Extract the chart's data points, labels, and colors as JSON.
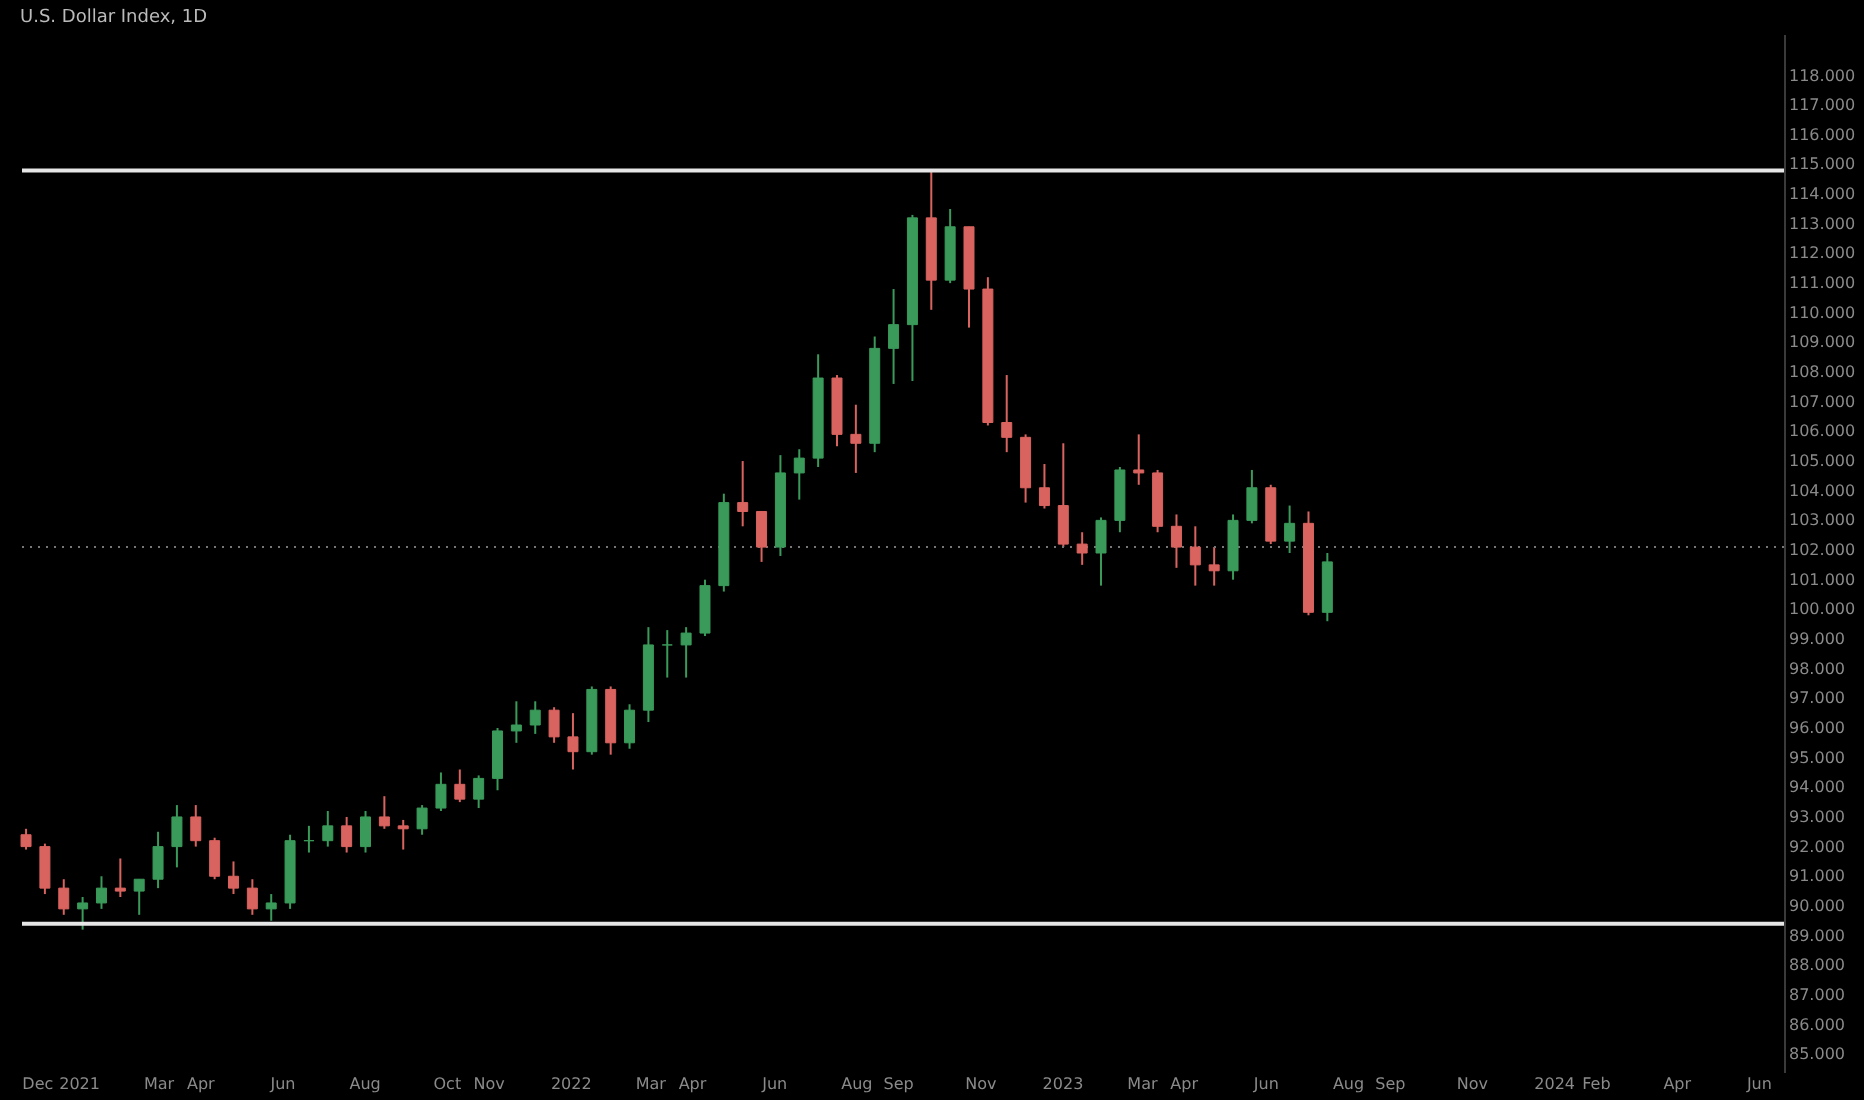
{
  "chart_data": {
    "type": "candlestick",
    "title": "U.S. Dollar Index, 1D",
    "x": [
      "2020-11-23",
      "2020-12-07",
      "2020-12-21",
      "2021-01-04",
      "2021-01-18",
      "2021-02-01",
      "2021-02-15",
      "2021-03-01",
      "2021-03-15",
      "2021-03-29",
      "2021-04-12",
      "2021-04-26",
      "2021-05-10",
      "2021-05-24",
      "2021-06-07",
      "2021-06-21",
      "2021-07-05",
      "2021-07-19",
      "2021-08-02",
      "2021-08-16",
      "2021-08-30",
      "2021-09-13",
      "2021-09-27",
      "2021-10-11",
      "2021-10-25",
      "2021-11-08",
      "2021-11-22",
      "2021-12-06",
      "2021-12-20",
      "2022-01-03",
      "2022-01-17",
      "2022-01-31",
      "2022-02-14",
      "2022-02-28",
      "2022-03-14",
      "2022-03-28",
      "2022-04-11",
      "2022-04-25",
      "2022-05-09",
      "2022-05-23",
      "2022-06-06",
      "2022-06-20",
      "2022-07-04",
      "2022-07-18",
      "2022-08-01",
      "2022-08-15",
      "2022-08-29",
      "2022-09-12",
      "2022-09-26",
      "2022-10-10",
      "2022-10-24",
      "2022-11-07",
      "2022-11-21",
      "2022-12-05",
      "2022-12-19",
      "2023-01-02",
      "2023-01-16",
      "2023-01-30",
      "2023-02-13",
      "2023-02-27",
      "2023-03-13",
      "2023-03-27",
      "2023-04-10",
      "2023-04-24",
      "2023-05-08",
      "2023-05-22",
      "2023-06-05",
      "2023-06-19",
      "2023-07-03",
      "2023-07-17"
    ],
    "ohlc": [
      [
        92.4,
        92.6,
        91.9,
        92.0
      ],
      [
        92.0,
        92.1,
        90.4,
        90.6
      ],
      [
        90.6,
        90.9,
        89.7,
        89.9
      ],
      [
        89.9,
        90.3,
        89.2,
        90.1
      ],
      [
        90.1,
        91.0,
        89.9,
        90.6
      ],
      [
        90.6,
        91.6,
        90.3,
        90.5
      ],
      [
        90.5,
        90.9,
        89.7,
        90.9
      ],
      [
        90.9,
        92.5,
        90.6,
        92.0
      ],
      [
        92.0,
        93.4,
        91.3,
        93.0
      ],
      [
        93.0,
        93.4,
        92.0,
        92.2
      ],
      [
        92.2,
        92.3,
        90.9,
        91.0
      ],
      [
        91.0,
        91.5,
        90.4,
        90.6
      ],
      [
        90.6,
        90.9,
        89.7,
        89.9
      ],
      [
        89.9,
        90.4,
        89.5,
        90.1
      ],
      [
        90.1,
        92.4,
        89.9,
        92.2
      ],
      [
        92.2,
        92.7,
        91.8,
        92.2
      ],
      [
        92.2,
        93.2,
        92.0,
        92.7
      ],
      [
        92.7,
        93.0,
        91.8,
        92.0
      ],
      [
        92.0,
        93.2,
        91.8,
        93.0
      ],
      [
        93.0,
        93.7,
        92.6,
        92.7
      ],
      [
        92.7,
        92.9,
        91.9,
        92.6
      ],
      [
        92.6,
        93.4,
        92.4,
        93.3
      ],
      [
        93.3,
        94.5,
        93.2,
        94.1
      ],
      [
        94.1,
        94.6,
        93.5,
        93.6
      ],
      [
        93.6,
        94.4,
        93.3,
        94.3
      ],
      [
        94.3,
        96.0,
        93.9,
        95.9
      ],
      [
        95.9,
        96.9,
        95.5,
        96.1
      ],
      [
        96.1,
        96.9,
        95.8,
        96.6
      ],
      [
        96.6,
        96.7,
        95.5,
        95.7
      ],
      [
        95.7,
        96.5,
        94.6,
        95.2
      ],
      [
        95.2,
        97.4,
        95.1,
        97.3
      ],
      [
        97.3,
        97.4,
        95.1,
        95.5
      ],
      [
        95.5,
        96.8,
        95.3,
        96.6
      ],
      [
        96.6,
        99.4,
        96.2,
        98.8
      ],
      [
        98.8,
        99.3,
        97.7,
        98.8
      ],
      [
        98.8,
        99.4,
        97.7,
        99.2
      ],
      [
        99.2,
        101.0,
        99.1,
        100.8
      ],
      [
        100.8,
        103.9,
        100.6,
        103.6
      ],
      [
        103.6,
        105.0,
        102.8,
        103.3
      ],
      [
        103.3,
        103.3,
        101.6,
        102.1
      ],
      [
        102.1,
        105.2,
        101.8,
        104.6
      ],
      [
        104.6,
        105.4,
        103.7,
        105.1
      ],
      [
        105.1,
        108.6,
        104.8,
        107.8
      ],
      [
        107.8,
        107.9,
        105.5,
        105.9
      ],
      [
        105.9,
        106.9,
        104.6,
        105.6
      ],
      [
        105.6,
        109.2,
        105.3,
        108.8
      ],
      [
        108.8,
        110.8,
        107.6,
        109.6
      ],
      [
        109.6,
        113.3,
        107.7,
        113.2
      ],
      [
        113.2,
        114.8,
        110.1,
        111.1
      ],
      [
        111.1,
        113.5,
        111.0,
        112.9
      ],
      [
        112.9,
        112.9,
        109.5,
        110.8
      ],
      [
        110.8,
        111.2,
        106.2,
        106.3
      ],
      [
        106.3,
        107.9,
        105.3,
        105.8
      ],
      [
        105.8,
        105.9,
        103.6,
        104.1
      ],
      [
        104.1,
        104.9,
        103.4,
        103.5
      ],
      [
        103.5,
        105.6,
        102.1,
        102.2
      ],
      [
        102.2,
        102.6,
        101.5,
        101.9
      ],
      [
        101.9,
        103.1,
        100.8,
        103.0
      ],
      [
        103.0,
        104.8,
        102.6,
        104.7
      ],
      [
        104.7,
        105.9,
        104.2,
        104.6
      ],
      [
        104.6,
        104.7,
        102.6,
        102.8
      ],
      [
        102.8,
        103.2,
        101.4,
        102.1
      ],
      [
        102.1,
        102.8,
        100.8,
        101.5
      ],
      [
        101.5,
        102.1,
        100.8,
        101.3
      ],
      [
        101.3,
        103.2,
        101.0,
        103.0
      ],
      [
        103.0,
        104.7,
        102.9,
        104.1
      ],
      [
        104.1,
        104.2,
        102.2,
        102.3
      ],
      [
        102.3,
        103.5,
        101.9,
        102.9
      ],
      [
        102.9,
        103.3,
        99.8,
        99.9
      ],
      [
        99.9,
        101.9,
        99.6,
        101.6
      ]
    ],
    "colors": [
      "#d9635f",
      "#d9635f",
      "#d9635f",
      "#3a9a5a",
      "#3a9a5a",
      "#d9635f",
      "#3a9a5a",
      "#3a9a5a",
      "#3a9a5a",
      "#d9635f",
      "#d9635f",
      "#d9635f",
      "#d9635f",
      "#3a9a5a",
      "#3a9a5a",
      "#3a9a5a",
      "#3a9a5a",
      "#d9635f",
      "#3a9a5a",
      "#d9635f",
      "#d9635f",
      "#3a9a5a",
      "#3a9a5a",
      "#d9635f",
      "#3a9a5a",
      "#3a9a5a",
      "#3a9a5a",
      "#3a9a5a",
      "#d9635f",
      "#d9635f",
      "#3a9a5a",
      "#d9635f",
      "#3a9a5a",
      "#3a9a5a",
      "#3a9a5a",
      "#3a9a5a",
      "#3a9a5a",
      "#3a9a5a",
      "#d9635f",
      "#d9635f",
      "#3a9a5a",
      "#3a9a5a",
      "#3a9a5a",
      "#d9635f",
      "#d9635f",
      "#3a9a5a",
      "#3a9a5a",
      "#3a9a5a",
      "#d9635f",
      "#3a9a5a",
      "#d9635f",
      "#d9635f",
      "#d9635f",
      "#d9635f",
      "#d9635f",
      "#d9635f",
      "#d9635f",
      "#3a9a5a",
      "#3a9a5a",
      "#d9635f",
      "#d9635f",
      "#d9635f",
      "#d9635f",
      "#d9635f",
      "#3a9a5a",
      "#3a9a5a",
      "#d9635f",
      "#3a9a5a",
      "#d9635f",
      "#3a9a5a"
    ],
    "xlim": [
      "2020-11-20",
      "2024-06-20"
    ],
    "xticks": [
      {
        "value": "2020-12-01",
        "label": "Dec"
      },
      {
        "value": "2021-01-01",
        "label": "2021"
      },
      {
        "value": "2021-03-01",
        "label": "Mar"
      },
      {
        "value": "2021-04-01",
        "label": "Apr"
      },
      {
        "value": "2021-06-01",
        "label": "Jun"
      },
      {
        "value": "2021-08-01",
        "label": "Aug"
      },
      {
        "value": "2021-10-01",
        "label": "Oct"
      },
      {
        "value": "2021-11-01",
        "label": "Nov"
      },
      {
        "value": "2022-01-01",
        "label": "2022"
      },
      {
        "value": "2022-03-01",
        "label": "Mar"
      },
      {
        "value": "2022-04-01",
        "label": "Apr"
      },
      {
        "value": "2022-06-01",
        "label": "Jun"
      },
      {
        "value": "2022-08-01",
        "label": "Aug"
      },
      {
        "value": "2022-09-01",
        "label": "Sep"
      },
      {
        "value": "2022-11-01",
        "label": "Nov"
      },
      {
        "value": "2023-01-01",
        "label": "2023"
      },
      {
        "value": "2023-03-01",
        "label": "Mar"
      },
      {
        "value": "2023-04-01",
        "label": "Apr"
      },
      {
        "value": "2023-06-01",
        "label": "Jun"
      },
      {
        "value": "2023-08-01",
        "label": "Aug"
      },
      {
        "value": "2023-09-01",
        "label": "Sep"
      },
      {
        "value": "2023-11-01",
        "label": "Nov"
      },
      {
        "value": "2024-01-01",
        "label": "2024"
      },
      {
        "value": "2024-02-01",
        "label": "Feb"
      },
      {
        "value": "2024-04-01",
        "label": "Apr"
      },
      {
        "value": "2024-06-01",
        "label": "Jun"
      }
    ],
    "ylim": [
      84.4,
      119.4
    ],
    "yticks": [
      {
        "value": 85,
        "label": "85.000"
      },
      {
        "value": 86,
        "label": "86.000"
      },
      {
        "value": 87,
        "label": "87.000"
      },
      {
        "value": 88,
        "label": "88.000"
      },
      {
        "value": 89,
        "label": "89.000"
      },
      {
        "value": 90,
        "label": "90.000"
      },
      {
        "value": 91,
        "label": "91.000"
      },
      {
        "value": 92,
        "label": "92.000"
      },
      {
        "value": 93,
        "label": "93.000"
      },
      {
        "value": 94,
        "label": "94.000"
      },
      {
        "value": 95,
        "label": "95.000"
      },
      {
        "value": 96,
        "label": "96.000"
      },
      {
        "value": 97,
        "label": "97.000"
      },
      {
        "value": 98,
        "label": "98.000"
      },
      {
        "value": 99,
        "label": "99.000"
      },
      {
        "value": 100,
        "label": "100.000"
      },
      {
        "value": 101,
        "label": "101.000"
      },
      {
        "value": 102,
        "label": "102.000"
      },
      {
        "value": 103,
        "label": "103.000"
      },
      {
        "value": 104,
        "label": "104.000"
      },
      {
        "value": 105,
        "label": "105.000"
      },
      {
        "value": 106,
        "label": "106.000"
      },
      {
        "value": 107,
        "label": "107.000"
      },
      {
        "value": 108,
        "label": "108.000"
      },
      {
        "value": 109,
        "label": "109.000"
      },
      {
        "value": 110,
        "label": "110.000"
      },
      {
        "value": 111,
        "label": "111.000"
      },
      {
        "value": 112,
        "label": "112.000"
      },
      {
        "value": 113,
        "label": "113.000"
      },
      {
        "value": 114,
        "label": "114.000"
      },
      {
        "value": 115,
        "label": "115.000"
      },
      {
        "value": 116,
        "label": "116.000"
      },
      {
        "value": 117,
        "label": "117.000"
      },
      {
        "value": 118,
        "label": "118.000"
      }
    ],
    "ref_lines": [
      {
        "axis": "y",
        "value": 114.8,
        "color": "#e6e6e6",
        "line_style": "solid"
      },
      {
        "axis": "y",
        "value": 89.4,
        "color": "#e6e6e6",
        "line_style": "solid"
      },
      {
        "axis": "y",
        "value": 102.1,
        "color": "#777777",
        "line_style": "dotted"
      }
    ],
    "grid": false
  }
}
